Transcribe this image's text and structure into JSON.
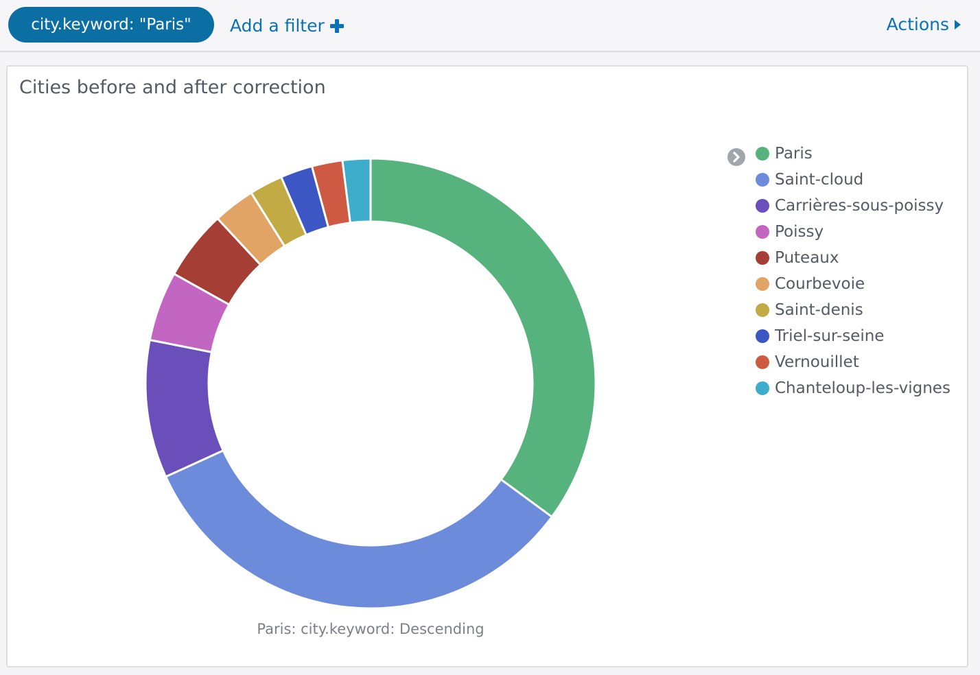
{
  "filter_bar": {
    "active_filter": "city.keyword: \"Paris\"",
    "add_filter_label": "Add a filter",
    "actions_label": "Actions"
  },
  "panel": {
    "title": "Cities before and after correction"
  },
  "chart_data": {
    "type": "pie",
    "donut": true,
    "title": "Cities before and after correction",
    "caption": "Paris: city.keyword: Descending",
    "legend_position": "right",
    "categories": [
      "Paris",
      "Saint-cloud",
      "Carrières-sous-poissy",
      "Poissy",
      "Puteaux",
      "Courbevoie",
      "Saint-denis",
      "Triel-sur-seine",
      "Vernouillet",
      "Chanteloup-les-vignes"
    ],
    "values": [
      35.1,
      33.1,
      9.9,
      5.0,
      5.0,
      3.0,
      2.4,
      2.3,
      2.2,
      2.0
    ],
    "colors": [
      "#57b37d",
      "#6c8bda",
      "#6a4fbb",
      "#c366c2",
      "#a53f36",
      "#e2a465",
      "#c2ab45",
      "#3c56c4",
      "#cf5a44",
      "#3eaccb"
    ]
  }
}
